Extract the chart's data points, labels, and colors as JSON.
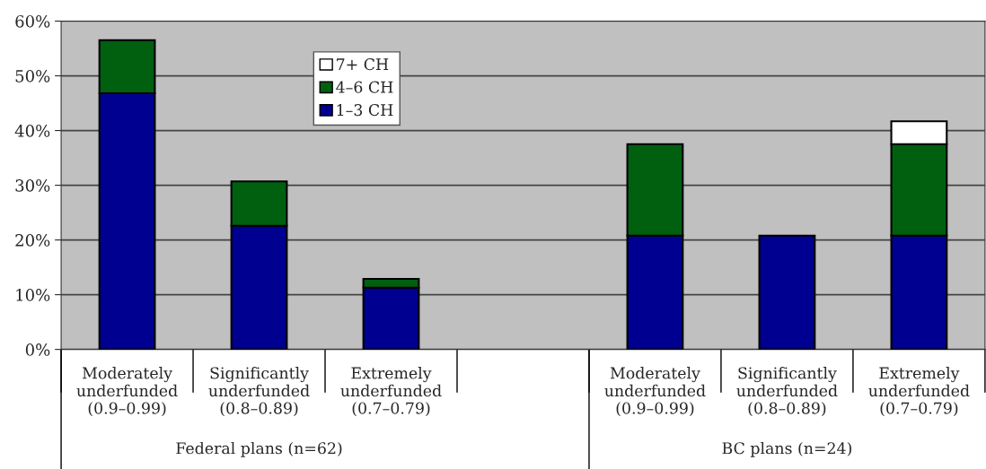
{
  "chart_data": {
    "type": "bar",
    "stacked": true,
    "categories": [
      "Moderately\nunderfunded\n(0.9–0.99)",
      "Significantly\nunderfunded\n(0.8–0.89)",
      "Extremely\nunderfunded\n(0.7–0.79)",
      null,
      "Moderately\nunderfunded\n(0.9–0.99)",
      "Significantly\nunderfunded\n(0.8–0.89)",
      "Extremely\nunderfunded\n(0.7–0.79)"
    ],
    "series": [
      {
        "name": "1–3 CH",
        "color": "#000090",
        "values": [
          46.8,
          22.6,
          11.3,
          null,
          20.8,
          20.8,
          20.8
        ]
      },
      {
        "name": "4–6 CH",
        "color": "#006010",
        "values": [
          9.7,
          8.1,
          1.6,
          null,
          16.7,
          null,
          16.7
        ]
      },
      {
        "name": "7+ CH",
        "color": "#ffffff",
        "values": [
          null,
          null,
          null,
          null,
          null,
          null,
          4.2
        ]
      }
    ],
    "ylim": [
      0,
      60
    ],
    "yticks": [
      {
        "value": 0,
        "label": "0%"
      },
      {
        "value": 10,
        "label": "10%"
      },
      {
        "value": 20,
        "label": "20%"
      },
      {
        "value": 30,
        "label": "30%"
      },
      {
        "value": 40,
        "label": "40%"
      },
      {
        "value": 50,
        "label": "50%"
      },
      {
        "value": 60,
        "label": "60%"
      }
    ],
    "grid": "y",
    "legend": "top",
    "annotations": [
      "Federal plans (n=62)",
      "BC plans (n=24)"
    ]
  }
}
